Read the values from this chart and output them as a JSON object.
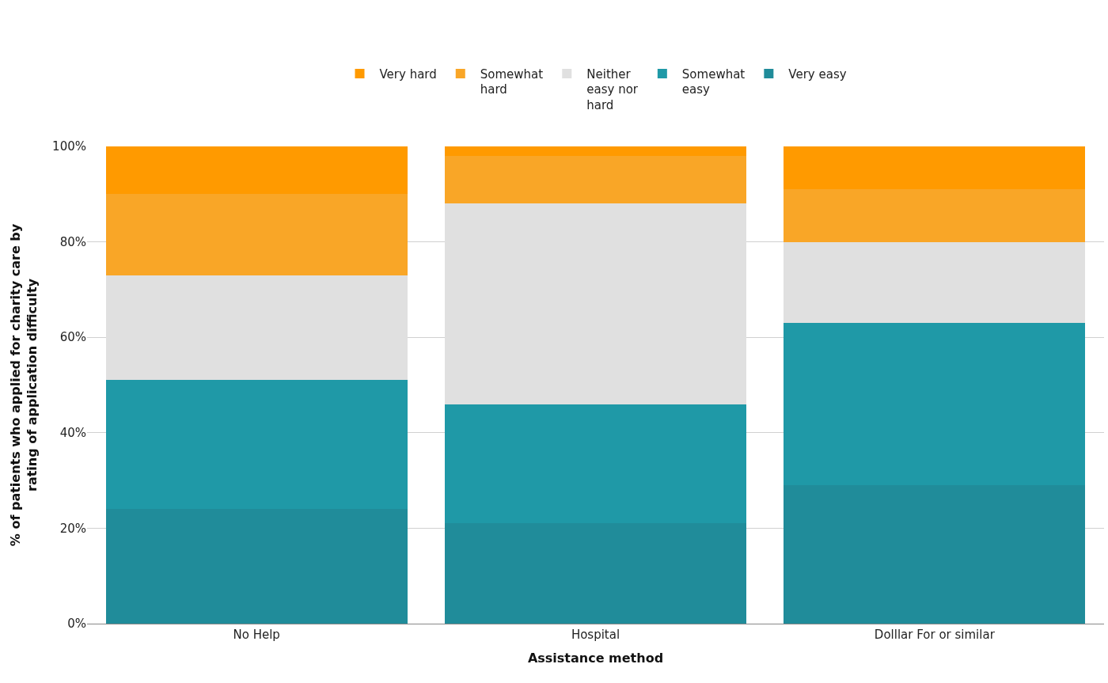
{
  "chart_data": {
    "type": "bar",
    "stacked": true,
    "xlabel": "Assistance method",
    "ylabel": "% of patients who applied for charity care by rating of application difficulty",
    "categories": [
      "No Help",
      "Hospital",
      "Dolllar For or similar"
    ],
    "series": [
      {
        "name": "Very easy",
        "color": "#208c9a",
        "values": [
          24,
          21,
          29
        ]
      },
      {
        "name": "Somewhat easy",
        "color": "#1f99a7",
        "values": [
          27,
          25,
          34
        ]
      },
      {
        "name": "Neither easy nor hard",
        "color": "#e0e0e0",
        "values": [
          22,
          42,
          17
        ]
      },
      {
        "name": "Somewhat hard",
        "color": "#f9a627",
        "values": [
          17,
          10,
          11
        ]
      },
      {
        "name": "Very hard",
        "color": "#ff9a00",
        "values": [
          10,
          2,
          9
        ]
      }
    ],
    "ylim": [
      0,
      100
    ],
    "yticks": [
      {
        "value": 0,
        "label": "0%"
      },
      {
        "value": 20,
        "label": "20%"
      },
      {
        "value": 40,
        "label": "40%"
      },
      {
        "value": 60,
        "label": "60%"
      },
      {
        "value": 80,
        "label": "80%"
      },
      {
        "value": 100,
        "label": "100%"
      }
    ],
    "grid": "y",
    "legend": "top"
  }
}
